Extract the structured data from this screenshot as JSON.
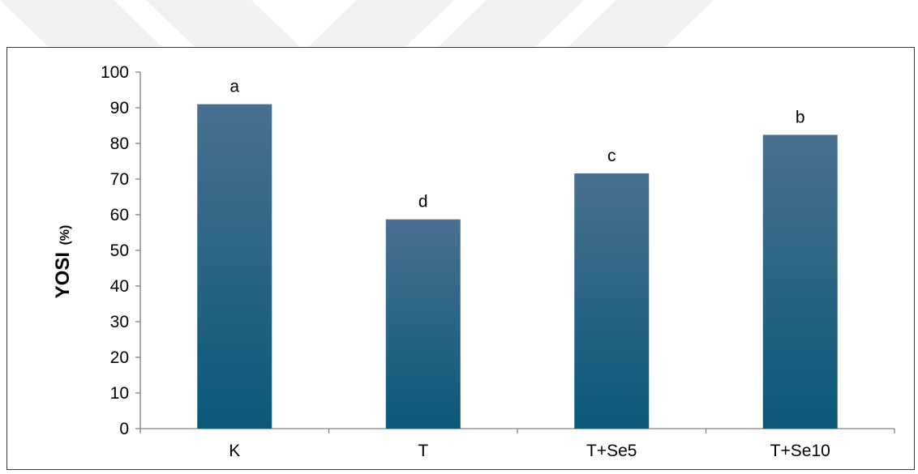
{
  "chart_data": {
    "type": "bar",
    "categories": [
      "K",
      "T",
      "T+Se5",
      "T+Se10"
    ],
    "values": [
      91,
      58.7,
      71.6,
      82.4
    ],
    "data_labels": [
      "a",
      "d",
      "c",
      "b"
    ],
    "title": "",
    "xlabel": "",
    "ylabel": "YOSI",
    "ylabel_unit": "(%)",
    "ylim": [
      0,
      100
    ],
    "yticks": [
      0,
      10,
      20,
      30,
      40,
      50,
      60,
      70,
      80,
      90,
      100
    ],
    "grid": false,
    "legend": "none",
    "bar_color_top": "#4a7090",
    "bar_color_bottom": "#0a5878"
  }
}
